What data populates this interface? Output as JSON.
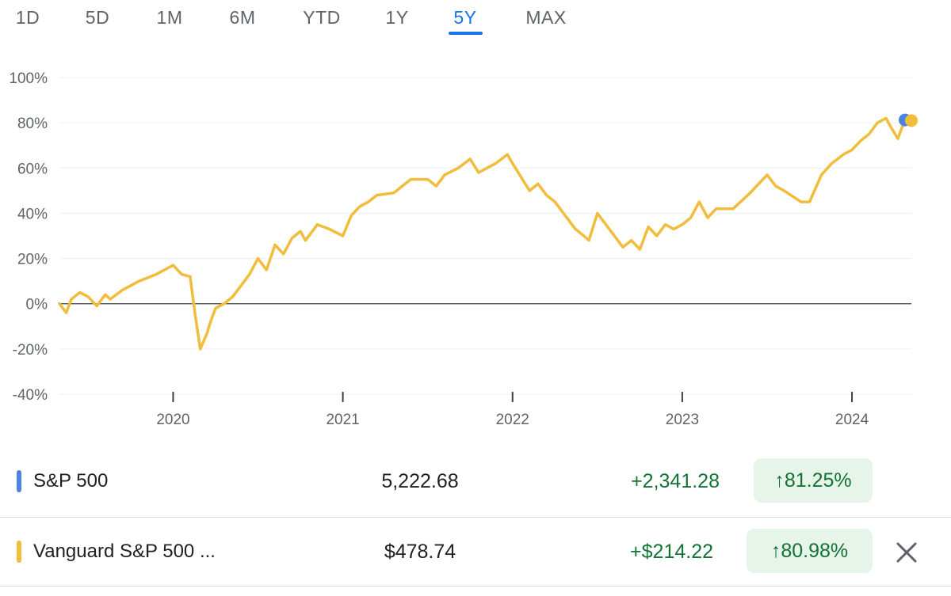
{
  "tabs": [
    {
      "label": "1D",
      "active": false
    },
    {
      "label": "5D",
      "active": false
    },
    {
      "label": "1M",
      "active": false
    },
    {
      "label": "6M",
      "active": false
    },
    {
      "label": "YTD",
      "active": false
    },
    {
      "label": "1Y",
      "active": false
    },
    {
      "label": "5Y",
      "active": true
    },
    {
      "label": "MAX",
      "active": false
    }
  ],
  "colors": {
    "accent": "#1a73e8",
    "sp500": "#4c82e0",
    "vanguard": "#f0be3c",
    "positive": "#137333",
    "positive_bg": "#e6f4ea"
  },
  "chart_data": {
    "type": "line",
    "y_ticks": [
      "100%",
      "80%",
      "60%",
      "40%",
      "20%",
      "0%",
      "-20%",
      "-40%"
    ],
    "ylim": [
      -40,
      100
    ],
    "x_ticks": [
      "2020",
      "2021",
      "2022",
      "2023",
      "2024"
    ],
    "xlim": [
      2019.33,
      2024.35
    ],
    "x_tick_values": [
      2020.0,
      2021.0,
      2022.0,
      2023.0,
      2024.0
    ],
    "baseline": 0,
    "grid": true,
    "series": [
      {
        "name": "S&P 500",
        "color": "#4c82e0",
        "x": [
          2019.33,
          2019.37,
          2019.4,
          2019.45,
          2019.5,
          2019.55,
          2019.6,
          2019.63,
          2019.7,
          2019.8,
          2019.9,
          2020.0,
          2020.05,
          2020.1,
          2020.13,
          2020.16,
          2020.2,
          2020.22,
          2020.25,
          2020.3,
          2020.35,
          2020.4,
          2020.45,
          2020.5,
          2020.55,
          2020.6,
          2020.65,
          2020.7,
          2020.75,
          2020.78,
          2020.85,
          2020.92,
          2021.0,
          2021.05,
          2021.1,
          2021.15,
          2021.2,
          2021.3,
          2021.4,
          2021.5,
          2021.55,
          2021.6,
          2021.68,
          2021.75,
          2021.8,
          2021.9,
          2021.97,
          2022.0,
          2022.05,
          2022.1,
          2022.15,
          2022.2,
          2022.25,
          2022.3,
          2022.37,
          2022.42,
          2022.45,
          2022.5,
          2022.58,
          2022.65,
          2022.7,
          2022.75,
          2022.8,
          2022.85,
          2022.9,
          2022.95,
          2023.0,
          2023.05,
          2023.1,
          2023.15,
          2023.2,
          2023.3,
          2023.4,
          2023.5,
          2023.55,
          2023.6,
          2023.7,
          2023.75,
          2023.82,
          2023.88,
          2023.95,
          2024.0,
          2024.05,
          2024.1,
          2024.15,
          2024.2,
          2024.23,
          2024.27,
          2024.3,
          2024.35
        ],
        "y": [
          0,
          -4,
          2,
          5,
          3,
          -1,
          4,
          2,
          6,
          10,
          13,
          17,
          13,
          12,
          -5,
          -20,
          -13,
          -8,
          -2,
          0,
          3,
          8,
          13,
          20,
          15,
          26,
          22,
          29,
          32,
          28,
          35,
          33,
          30,
          39,
          43,
          45,
          48,
          49,
          55,
          55,
          52,
          57,
          60,
          64,
          58,
          62,
          66,
          62,
          56,
          50,
          53,
          48,
          45,
          40,
          33,
          30,
          28,
          40,
          32,
          25,
          28,
          24,
          34,
          30,
          35,
          33,
          35,
          38,
          45,
          38,
          42,
          42,
          49,
          57,
          52,
          50,
          45,
          45,
          57,
          62,
          66,
          68,
          72,
          75,
          80,
          82,
          78,
          73,
          79,
          81.25
        ]
      },
      {
        "name": "Vanguard S&P 500 ...",
        "color": "#f0be3c",
        "x": [
          2019.33,
          2019.37,
          2019.4,
          2019.45,
          2019.5,
          2019.55,
          2019.6,
          2019.63,
          2019.7,
          2019.8,
          2019.9,
          2020.0,
          2020.05,
          2020.1,
          2020.13,
          2020.16,
          2020.2,
          2020.22,
          2020.25,
          2020.3,
          2020.35,
          2020.4,
          2020.45,
          2020.5,
          2020.55,
          2020.6,
          2020.65,
          2020.7,
          2020.75,
          2020.78,
          2020.85,
          2020.92,
          2021.0,
          2021.05,
          2021.1,
          2021.15,
          2021.2,
          2021.3,
          2021.4,
          2021.5,
          2021.55,
          2021.6,
          2021.68,
          2021.75,
          2021.8,
          2021.9,
          2021.97,
          2022.0,
          2022.05,
          2022.1,
          2022.15,
          2022.2,
          2022.25,
          2022.3,
          2022.37,
          2022.42,
          2022.45,
          2022.5,
          2022.58,
          2022.65,
          2022.7,
          2022.75,
          2022.8,
          2022.85,
          2022.9,
          2022.95,
          2023.0,
          2023.05,
          2023.1,
          2023.15,
          2023.2,
          2023.3,
          2023.4,
          2023.5,
          2023.55,
          2023.6,
          2023.7,
          2023.75,
          2023.82,
          2023.88,
          2023.95,
          2024.0,
          2024.05,
          2024.1,
          2024.15,
          2024.2,
          2024.23,
          2024.27,
          2024.3,
          2024.35
        ],
        "y": [
          0,
          -4,
          2,
          5,
          3,
          -1,
          4,
          2,
          6,
          10,
          13,
          17,
          13,
          12,
          -5,
          -20,
          -13,
          -8,
          -2,
          0,
          3,
          8,
          13,
          20,
          15,
          26,
          22,
          29,
          32,
          28,
          35,
          33,
          30,
          39,
          43,
          45,
          48,
          49,
          55,
          55,
          52,
          57,
          60,
          64,
          58,
          62,
          66,
          62,
          56,
          50,
          53,
          48,
          45,
          40,
          33,
          30,
          28,
          40,
          32,
          25,
          28,
          24,
          34,
          30,
          35,
          33,
          35,
          38,
          45,
          38,
          42,
          42,
          49,
          57,
          52,
          50,
          45,
          45,
          57,
          62,
          66,
          68,
          72,
          75,
          80,
          82,
          78,
          73,
          79,
          80.98
        ]
      }
    ]
  },
  "legend": [
    {
      "name": "S&P 500",
      "price": "5,222.68",
      "change": "+2,341.28",
      "percent": "81.25%",
      "arrow": "↑",
      "color": "#4c82e0"
    },
    {
      "name": "Vanguard S&P 500 ...",
      "price": "$478.74",
      "change": "+$214.22",
      "percent": "80.98%",
      "arrow": "↑",
      "color": "#f0be3c",
      "close_icon": "close-icon"
    }
  ]
}
